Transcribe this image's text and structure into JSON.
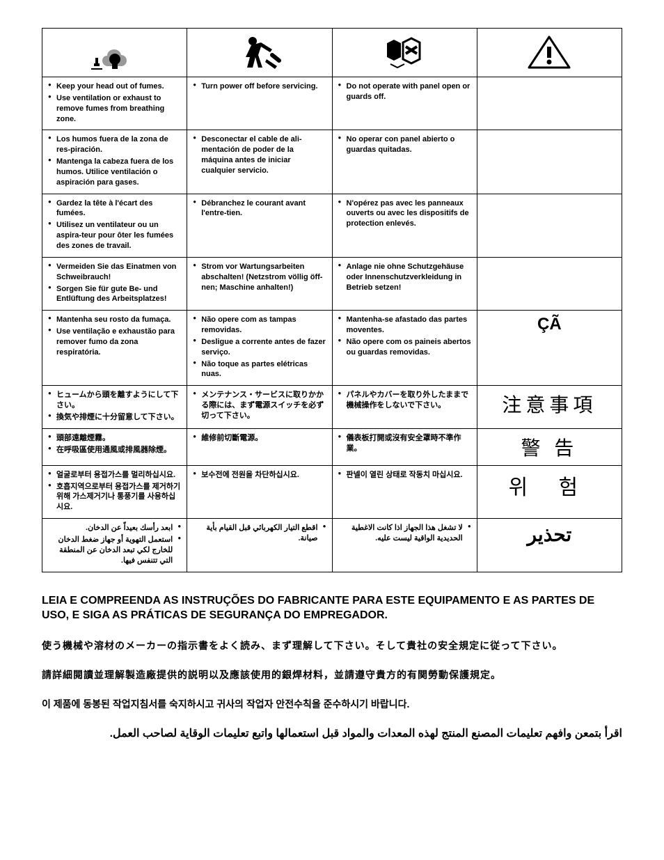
{
  "table": {
    "columns": [
      "fumes",
      "service",
      "panel",
      "label"
    ],
    "rows": [
      {
        "lang": "en",
        "fumes": [
          "Keep your head out of fumes.",
          "Use ventilation or exhaust to remove fumes from breathing zone."
        ],
        "service": [
          "Turn power off before servicing."
        ],
        "panel": [
          "Do not operate with panel open or guards off."
        ],
        "label": ""
      },
      {
        "lang": "es",
        "fumes": [
          "Los humos fuera de la zona de res-piración.",
          "Mantenga la cabeza fuera de los humos. Utilice ventilación o aspiración para gases."
        ],
        "service": [
          "Desconectar el cable de ali-mentación de poder de la máquina antes de iniciar cualquier servicio."
        ],
        "panel": [
          "No operar con panel abierto o guardas quitadas."
        ],
        "label": ""
      },
      {
        "lang": "fr",
        "fumes": [
          "Gardez la tête à l'écart des fumées.",
          "Utilisez un ventilateur ou un aspira-teur pour ôter les fumées des zones de travail."
        ],
        "service": [
          "Débranchez le courant avant l'entre-tien."
        ],
        "panel": [
          "N'opérez pas avec les panneaux ouverts ou avec les dispositifs de protection enlevés."
        ],
        "label": ""
      },
      {
        "lang": "de",
        "fumes": [
          "Vermeiden Sie das Einatmen von Schweibrauch!",
          "Sorgen Sie für gute Be- und Entlüftung des Arbeitsplatzes!"
        ],
        "service": [
          "Strom vor Wartungsarbeiten abschalten! (Netzstrom völlig öff-nen; Maschine anhalten!)"
        ],
        "panel": [
          "Anlage nie ohne Schutzgehäuse oder Innenschutzverkleidung in Betrieb setzen!"
        ],
        "label": ""
      },
      {
        "lang": "pt",
        "fumes": [
          "Mantenha seu rosto da fumaça.",
          "Use ventilação e exhaustão para remover fumo da zona respiratória."
        ],
        "service": [
          "Não opere com as tampas removidas.",
          "Desligue a corrente antes de fazer serviço.",
          "Não toque as partes elétricas nuas."
        ],
        "panel": [
          "Mantenha-se afastado das partes moventes.",
          "Não opere com os paineis abertos ou guardas removidas."
        ],
        "label": "ÇÃ",
        "label_class": "label-pt"
      },
      {
        "lang": "ja",
        "fumes": [
          "ヒュームから頭を離すようにして下さい。",
          "換気や排煙に十分留意して下さい。"
        ],
        "service": [
          "メンテナンス・サービスに取りかかる際には、まず電源スイッチを必ず切って下さい。"
        ],
        "panel": [
          "パネルやカバーを取り外したままで機械操作をしないで下さい。"
        ],
        "label": "注意事項",
        "label_class": "label-cjk"
      },
      {
        "lang": "zh",
        "fumes": [
          "頭部遠離煙霧。",
          "在呼吸區使用通風或排風器除煙。"
        ],
        "service": [
          "維修前切斷電源。"
        ],
        "panel": [
          "儀表板打開或沒有安全罩時不準作業。"
        ],
        "label": "警  告",
        "label_class": "label-cjk"
      },
      {
        "lang": "ko",
        "fumes": [
          "얼굴로부터 용접가스를 멀리하십시요.",
          "호흡지역으로부터 용접가스를 제거하기 위해 가스제거기나 통풍기를 사용하십시요."
        ],
        "service": [
          "보수전에 전원을 차단하십시요."
        ],
        "panel": [
          "판넬이 열린 상태로 작동치 마십시요."
        ],
        "label": "위 험",
        "label_class": "label-ko"
      },
      {
        "lang": "ar",
        "rtl": true,
        "fumes": [
          "ابعد رأسك بعيداً عن الدخان.",
          "استعمل التهوية أو جهاز ضغط الدخان للخارج لكي تبعد الدخان عن المنطقة التي تتنفس فيها."
        ],
        "service": [
          "اقطع التيار الكهربائي قبل القيام بأية صيانة."
        ],
        "panel": [
          "لا تشغل هذا الجهاز اذا كانت الاغطية الحديدية الواقية ليست عليه."
        ],
        "label": "تحذير",
        "label_class": "label-ar"
      }
    ]
  },
  "footer": {
    "pt": "LEIA E COMPREENDA AS INSTRUÇÕES DO FABRICANTE PARA ESTE EQUIPAMENTO E AS PARTES DE USO, E SIGA AS PRÁTICAS DE SEGURANÇA DO EMPREGADOR.",
    "ja": "使う機械や溶材のメーカーの指示書をよく読み、まず理解して下さい。そして貴社の安全規定に従って下さい。",
    "zh": "請詳細閱讀並理解製造廠提供的説明以及應該使用的銀焊材料，並請遵守貴方的有関勞動保護規定。",
    "ko": "이 제품에 동봉된 작업지침서를 숙지하시고 귀사의 작업자 안전수칙을 준수하시기 바랍니다.",
    "ar": "اقرأ بتمعن وافهم تعليمات المصنع المنتج لهذه المعدات والمواد قبل استعمالها واتبع تعليمات الوقاية لصاحب العمل."
  },
  "style": {
    "border_color": "#000000",
    "bg": "#ffffff",
    "text_color": "#000000",
    "cell_font_size": 11,
    "footer_font_size_pt": 16,
    "footer_font_size_cjk": 14
  }
}
